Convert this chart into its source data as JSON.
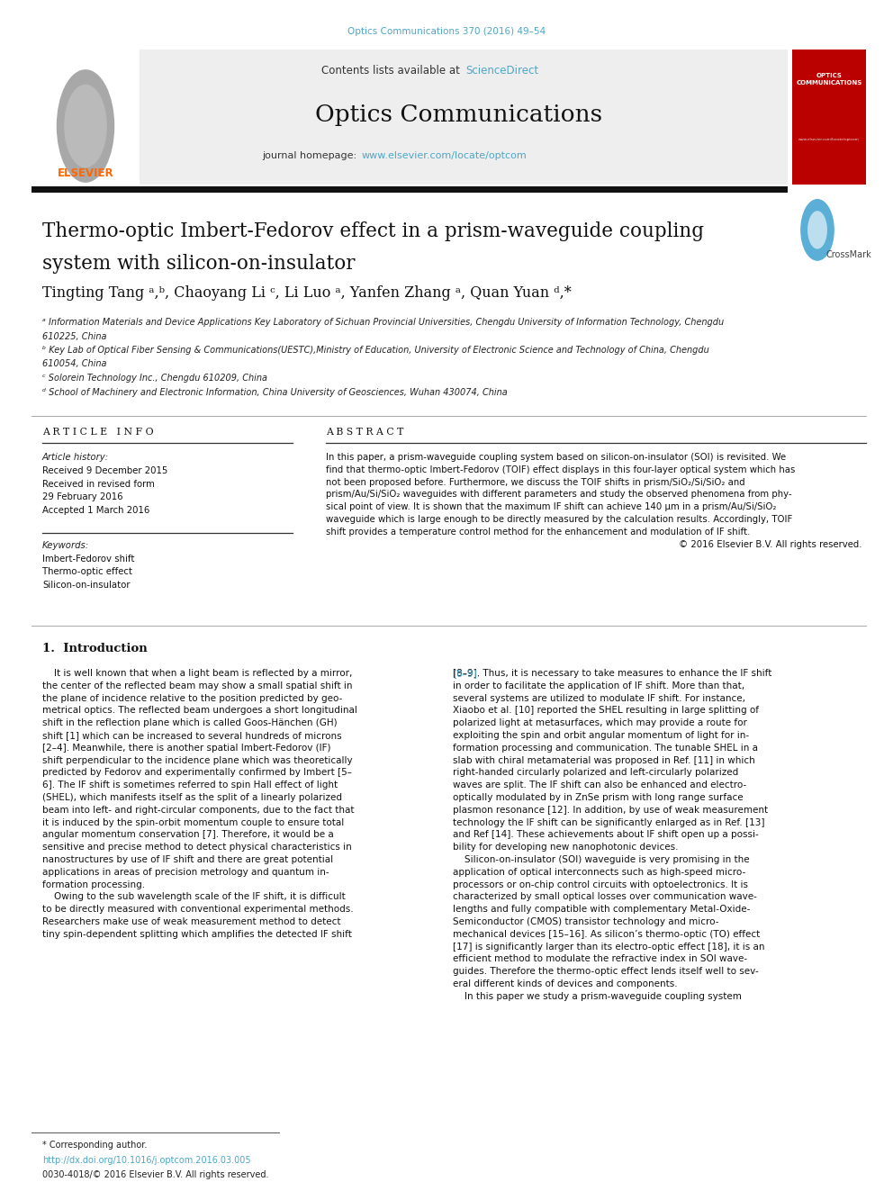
{
  "page_width": 9.92,
  "page_height": 13.23,
  "background_color": "#ffffff",
  "header_journal_ref": "Optics Communications 370 (2016) 49–54",
  "header_ref_color": "#4da6c8",
  "journal_name": "Optics Communications",
  "sciencedirect_color": "#4da6c8",
  "journal_url_color": "#4da6c8",
  "paper_title_line1": "Thermo-optic Imbert-Fedorov effect in a prism-waveguide coupling",
  "paper_title_line2": "system with silicon-on-insulator",
  "author_line": "Tingting Tang ᵃ,ᵇ, Chaoyang Li ᶜ, Li Luo ᵃ, Yanfen Zhang ᵃ, Quan Yuan ᵈ,*",
  "aff_texts": [
    "ᵃ Information Materials and Device Applications Key Laboratory of Sichuan Provincial Universities, Chengdu University of Information Technology, Chengdu",
    "610225, China",
    "ᵇ Key Lab of Optical Fiber Sensing & Communications(UESTC),Ministry of Education, University of Electronic Science and Technology of China, Chengdu",
    "610054, China",
    "ᶜ Solorein Technology Inc., Chengdu 610209, China",
    "ᵈ School of Machinery and Electronic Information, China University of Geosciences, Wuhan 430074, China"
  ],
  "article_info_title": "A R T I C L E   I N F O",
  "abstract_title": "A B S T R A C T",
  "article_history_label": "Article history:",
  "article_history_lines": [
    "Received 9 December 2015",
    "Received in revised form",
    "29 February 2016",
    "Accepted 1 March 2016"
  ],
  "keywords_label": "Keywords:",
  "keywords_lines": [
    "Imbert-Fedorov shift",
    "Thermo-optic effect",
    "Silicon-on-insulator"
  ],
  "abstract_lines": [
    "In this paper, a prism-waveguide coupling system based on silicon-on-insulator (SOI) is revisited. We",
    "find that thermo-optic Imbert-Fedorov (TOIF) effect displays in this four-layer optical system which has",
    "not been proposed before. Furthermore, we discuss the TOIF shifts in prism/SiO₂/Si/SiO₂ and",
    "prism/Au/Si/SiO₂ waveguides with different parameters and study the observed phenomena from phy-",
    "sical point of view. It is shown that the maximum IF shift can achieve 140 μm in a prism/Au/Si/SiO₂",
    "waveguide which is large enough to be directly measured by the calculation results. Accordingly, TOIF",
    "shift provides a temperature control method for the enhancement and modulation of IF shift.",
    "© 2016 Elsevier B.V. All rights reserved."
  ],
  "intro_title": "1.  Introduction",
  "intro_col1_lines": [
    "    It is well known that when a light beam is reflected by a mirror,",
    "the center of the reflected beam may show a small spatial shift in",
    "the plane of incidence relative to the position predicted by geo-",
    "metrical optics. The reflected beam undergoes a short longitudinal",
    "shift in the reflection plane which is called Goos-Hänchen (GH)",
    "shift [1] which can be increased to several hundreds of microns",
    "[2–4]. Meanwhile, there is another spatial Imbert-Fedorov (IF)",
    "shift perpendicular to the incidence plane which was theoretically",
    "predicted by Fedorov and experimentally confirmed by Imbert [5–",
    "6]. The IF shift is sometimes referred to spin Hall effect of light",
    "(SHEL), which manifests itself as the split of a linearly polarized",
    "beam into left- and right-circular components, due to the fact that",
    "it is induced by the spin-orbit momentum couple to ensure total",
    "angular momentum conservation [7]. Therefore, it would be a",
    "sensitive and precise method to detect physical characteristics in",
    "nanostructures by use of IF shift and there are great potential",
    "applications in areas of precision metrology and quantum in-",
    "formation processing.",
    "    Owing to the sub wavelength scale of the IF shift, it is difficult",
    "to be directly measured with conventional experimental methods.",
    "Researchers make use of weak measurement method to detect",
    "tiny spin-dependent splitting which amplifies the detected IF shift"
  ],
  "intro_col2_lines": [
    "[8–9]. Thus, it is necessary to take measures to enhance the IF shift",
    "in order to facilitate the application of IF shift. More than that,",
    "several systems are utilized to modulate IF shift. For instance,",
    "Xiaobo et al. [10] reported the SHEL resulting in large splitting of",
    "polarized light at metasurfaces, which may provide a route for",
    "exploiting the spin and orbit angular momentum of light for in-",
    "formation processing and communication. The tunable SHEL in a",
    "slab with chiral metamaterial was proposed in Ref. [11] in which",
    "right-handed circularly polarized and left-circularly polarized",
    "waves are split. The IF shift can also be enhanced and electro-",
    "optically modulated by in ZnSe prism with long range surface",
    "plasmon resonance [12]. In addition, by use of weak measurement",
    "technology the IF shift can be significantly enlarged as in Ref. [13]",
    "and Ref [14]. These achievements about IF shift open up a possi-",
    "bility for developing new nanophotonic devices.",
    "    Silicon-on-insulator (SOI) waveguide is very promising in the",
    "application of optical interconnects such as high-speed micro-",
    "processors or on-chip control circuits with optoelectronics. It is",
    "characterized by small optical losses over communication wave-",
    "lengths and fully compatible with complementary Metal-Oxide-",
    "Semiconductor (CMOS) transistor technology and micro-",
    "mechanical devices [15–16]. As silicon’s thermo-optic (TO) effect",
    "[17] is significantly larger than its electro-optic effect [18], it is an",
    "efficient method to modulate the refractive index in SOI wave-",
    "guides. Therefore the thermo-optic effect lends itself well to sev-",
    "eral different kinds of devices and components.",
    "    In this paper we study a prism-waveguide coupling system"
  ],
  "footer_note": "* Corresponding author.",
  "footer_doi": "http://dx.doi.org/10.1016/j.optcom.2016.03.005",
  "footer_issn": "0030-4018/© 2016 Elsevier B.V. All rights reserved.",
  "link_color": "#4da6c8",
  "text_color": "#111111",
  "elsevier_orange": "#FF6600"
}
